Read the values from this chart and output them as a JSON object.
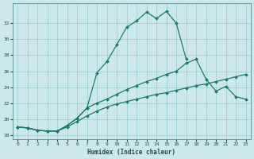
{
  "xlabel": "Humidex (Indice chaleur)",
  "bg_color": "#cce8e8",
  "grid_color": "#99cccc",
  "line_color": "#1a7a6e",
  "line1_x": [
    0,
    1,
    2,
    3,
    4,
    5,
    6,
    7,
    8,
    9,
    10,
    11,
    12,
    13,
    14,
    15,
    16,
    17
  ],
  "line1_y": [
    19.0,
    18.9,
    18.6,
    18.5,
    18.5,
    19.2,
    20.1,
    21.4,
    25.8,
    27.2,
    29.3,
    31.5,
    32.3,
    33.4,
    32.6,
    33.5,
    32.0,
    27.5
  ],
  "line2_x": [
    0,
    1,
    2,
    3,
    4,
    5,
    6,
    7,
    8,
    9,
    10,
    11,
    12,
    13,
    14,
    15,
    16,
    17,
    18,
    19,
    20,
    21,
    22,
    23
  ],
  "line2_y": [
    19.0,
    18.9,
    18.6,
    18.5,
    18.5,
    19.2,
    20.1,
    21.4,
    22.0,
    22.5,
    23.1,
    23.7,
    24.2,
    24.7,
    25.1,
    25.6,
    26.0,
    27.0,
    27.5,
    25.0,
    23.5,
    24.1,
    22.8,
    22.5
  ],
  "line3_x": [
    0,
    1,
    2,
    3,
    4,
    5,
    6,
    7,
    8,
    9,
    10,
    11,
    12,
    13,
    14,
    15,
    16,
    17,
    18,
    19,
    20,
    21,
    22,
    23
  ],
  "line3_y": [
    19.0,
    18.9,
    18.6,
    18.5,
    18.5,
    19.0,
    19.7,
    20.4,
    21.0,
    21.5,
    21.9,
    22.2,
    22.5,
    22.8,
    23.1,
    23.3,
    23.6,
    23.9,
    24.2,
    24.4,
    24.7,
    25.0,
    25.3,
    25.6
  ],
  "ylim": [
    17.5,
    34.5
  ],
  "xlim": [
    -0.5,
    23.5
  ],
  "yticks": [
    18,
    20,
    22,
    24,
    26,
    28,
    30,
    32
  ],
  "xticks": [
    0,
    1,
    2,
    3,
    4,
    5,
    6,
    7,
    8,
    9,
    10,
    11,
    12,
    13,
    14,
    15,
    16,
    17,
    18,
    19,
    20,
    21,
    22,
    23
  ]
}
